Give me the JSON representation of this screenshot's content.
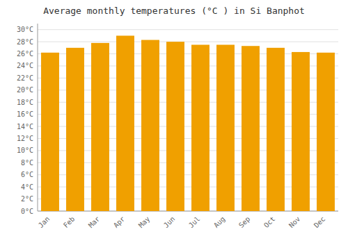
{
  "chart_data": {
    "type": "bar",
    "title": "Average monthly temperatures (°C ) in Si Banphot",
    "categories": [
      "Jan",
      "Feb",
      "Mar",
      "Apr",
      "May",
      "Jun",
      "Jul",
      "Aug",
      "Sep",
      "Oct",
      "Nov",
      "Dec"
    ],
    "values": [
      26.2,
      27.0,
      27.8,
      29.0,
      28.3,
      28.0,
      27.5,
      27.5,
      27.3,
      27.0,
      26.3,
      26.2
    ],
    "color": "#F0A000",
    "ylim": [
      0,
      31
    ],
    "yticks": [
      {
        "value": 0,
        "label": "0°C"
      },
      {
        "value": 2,
        "label": "2°C"
      },
      {
        "value": 4,
        "label": "4°C"
      },
      {
        "value": 6,
        "label": "6°C"
      },
      {
        "value": 8,
        "label": "8°C"
      },
      {
        "value": 10,
        "label": "10°C"
      },
      {
        "value": 12,
        "label": "12°C"
      },
      {
        "value": 14,
        "label": "14°C"
      },
      {
        "value": 16,
        "label": "16°C"
      },
      {
        "value": 18,
        "label": "18°C"
      },
      {
        "value": 20,
        "label": "20°C"
      },
      {
        "value": 22,
        "label": "22°C"
      },
      {
        "value": 24,
        "label": "24°C"
      },
      {
        "value": 26,
        "label": "26°C"
      },
      {
        "value": 28,
        "label": "28°C"
      },
      {
        "value": 30,
        "label": "30°C"
      }
    ],
    "grid": true
  }
}
